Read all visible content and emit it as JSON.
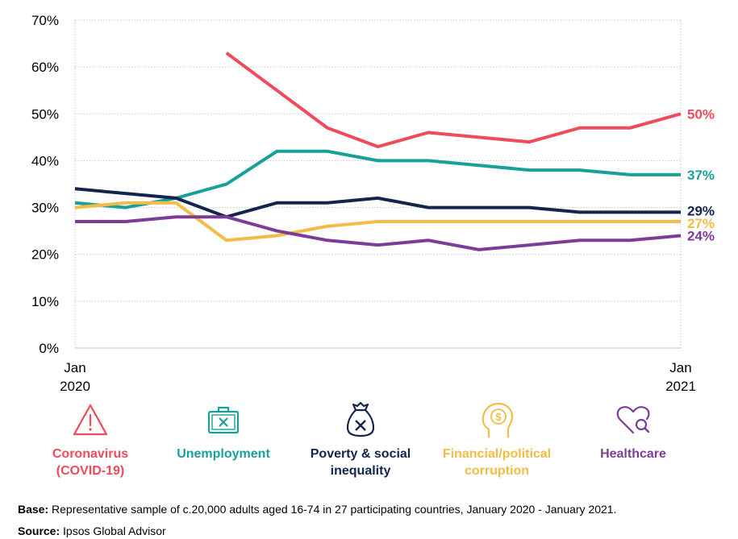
{
  "chart_data": {
    "type": "line",
    "title": "",
    "xlabel": "",
    "ylabel": "",
    "ylim": [
      0,
      70
    ],
    "yticks": [
      "0%",
      "10%",
      "20%",
      "30%",
      "40%",
      "50%",
      "60%",
      "70%"
    ],
    "x_start_label": [
      "Jan",
      "2020"
    ],
    "x_end_label": [
      "Jan",
      "2021"
    ],
    "x_count": 13,
    "series": [
      {
        "name": "Coronavirus (COVID-19)",
        "color": "#f04b5c",
        "values": [
          null,
          null,
          null,
          63,
          55,
          47,
          43,
          46,
          45,
          44,
          47,
          47,
          50
        ],
        "end_label": "50%"
      },
      {
        "name": "Unemployment",
        "color": "#18a19a",
        "values": [
          31,
          30,
          32,
          35,
          42,
          42,
          40,
          40,
          39,
          38,
          38,
          37,
          37
        ],
        "end_label": "37%"
      },
      {
        "name": "Poverty & social inequality",
        "color": "#13254d",
        "values": [
          34,
          33,
          32,
          28,
          31,
          31,
          32,
          30,
          30,
          30,
          29,
          29,
          29
        ],
        "end_label": "29%"
      },
      {
        "name": "Financial/political corruption",
        "color": "#f2bc47",
        "values": [
          30,
          31,
          31,
          23,
          24,
          26,
          27,
          27,
          27,
          27,
          27,
          27,
          27
        ],
        "end_label": "27%"
      },
      {
        "name": "Healthcare",
        "color": "#7d3c98",
        "values": [
          27,
          27,
          28,
          28,
          25,
          23,
          22,
          23,
          21,
          22,
          23,
          23,
          24
        ],
        "end_label": "24%"
      }
    ]
  },
  "legend": [
    {
      "label": "Coronavirus\n(COVID-19)",
      "icon": "warning-triangle-icon",
      "color": "#f04b5c"
    },
    {
      "label": "Unemployment",
      "icon": "briefcase-icon",
      "color": "#18a19a"
    },
    {
      "label": "Poverty & social\ninequality",
      "icon": "money-bag-icon",
      "color": "#13254d"
    },
    {
      "label": "Financial/political\ncorruption",
      "icon": "head-dollar-icon",
      "color": "#f2bc47"
    },
    {
      "label": "Healthcare",
      "icon": "heart-search-icon",
      "color": "#7d3c98"
    }
  ],
  "footer": {
    "base_label": "Base:",
    "base_text": "Representative sample of c.20,000 adults aged 16-74 in 27 participating countries, January 2020 - January 2021.",
    "source_label": "Source:",
    "source_text": "Ipsos Global Advisor"
  }
}
